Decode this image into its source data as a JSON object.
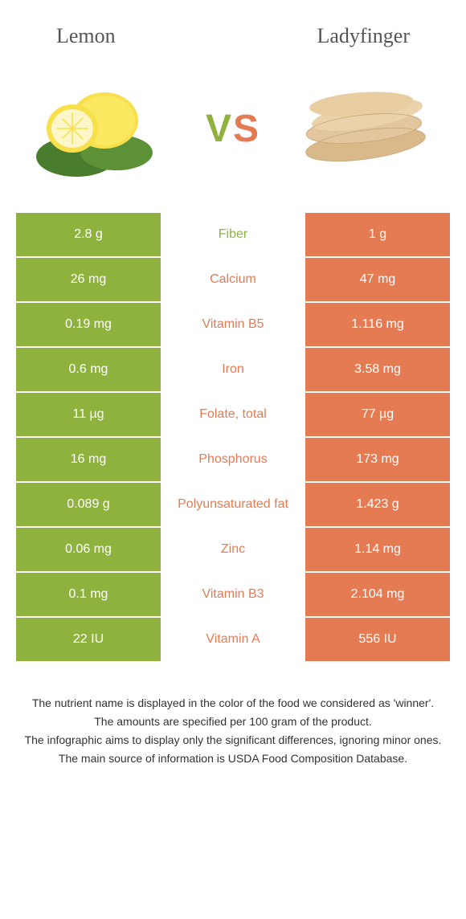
{
  "foods": {
    "left": {
      "name": "Lemon",
      "color": "#8fb23f"
    },
    "right": {
      "name": "Ladyfinger",
      "color": "#e57b52"
    }
  },
  "vs_label": {
    "v": "V",
    "s": "S"
  },
  "rows": [
    {
      "label": "Fiber",
      "left": "2.8 g",
      "right": "1 g",
      "winner": "left"
    },
    {
      "label": "Calcium",
      "left": "26 mg",
      "right": "47 mg",
      "winner": "right"
    },
    {
      "label": "Vitamin B5",
      "left": "0.19 mg",
      "right": "1.116 mg",
      "winner": "right"
    },
    {
      "label": "Iron",
      "left": "0.6 mg",
      "right": "3.58 mg",
      "winner": "right"
    },
    {
      "label": "Folate, total",
      "left": "11 µg",
      "right": "77 µg",
      "winner": "right"
    },
    {
      "label": "Phosphorus",
      "left": "16 mg",
      "right": "173 mg",
      "winner": "right"
    },
    {
      "label": "Polyunsaturated fat",
      "left": "0.089 g",
      "right": "1.423 g",
      "winner": "right"
    },
    {
      "label": "Zinc",
      "left": "0.06 mg",
      "right": "1.14 mg",
      "winner": "right"
    },
    {
      "label": "Vitamin B3",
      "left": "0.1 mg",
      "right": "2.104 mg",
      "winner": "right"
    },
    {
      "label": "Vitamin A",
      "left": "22 IU",
      "right": "556 IU",
      "winner": "right"
    }
  ],
  "footnotes": [
    "The nutrient name is displayed in the color of the food we considered as 'winner'.",
    "The amounts are specified per 100 gram of the product.",
    "The infographic aims to display only the significant differences, ignoring minor ones.",
    "The main source of information is USDA Food Composition Database."
  ],
  "colors": {
    "left_bg": "#8fb23f",
    "right_bg": "#e57b52",
    "mid_bg": "#ffffff"
  }
}
